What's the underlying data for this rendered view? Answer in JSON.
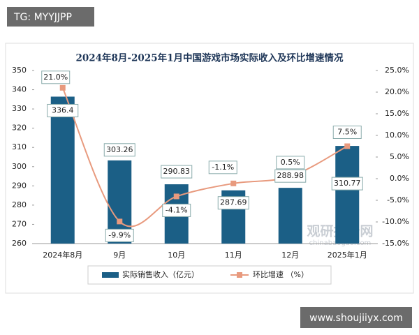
{
  "chart_data": {
    "type": "bar-line",
    "title": "2024年8月-2025年1月中国游戏市场实际收入及环比增速情况",
    "categories": [
      "2024年8月",
      "9月",
      "10月",
      "11月",
      "12月",
      "2025年1月"
    ],
    "series": [
      {
        "name": "实际销售收入（亿元）",
        "type": "bar",
        "color": "#1b5f86",
        "values": [
          336.4,
          303.26,
          290.83,
          287.69,
          288.98,
          310.77
        ]
      },
      {
        "name": "环比增速 （%）",
        "type": "line",
        "axis": "y2",
        "color": "#e89a7e",
        "values": [
          21.0,
          -9.9,
          -4.1,
          -1.1,
          0.5,
          7.5
        ],
        "value_labels": [
          "21.0%",
          "-9.9%",
          "-4.1%",
          "-1.1%",
          "0.5%",
          "7.5%"
        ]
      }
    ],
    "ylim": [
      260,
      350
    ],
    "yticks": [
      260,
      270,
      280,
      290,
      300,
      310,
      320,
      330,
      340,
      350
    ],
    "y2lim": [
      -15,
      25
    ],
    "y2ticks": [
      {
        "value": -15,
        "label": "-15.0%"
      },
      {
        "value": -10,
        "label": "-10.0%"
      },
      {
        "value": -5,
        "label": "-5.0%"
      },
      {
        "value": 0,
        "label": "0.0%"
      },
      {
        "value": 5,
        "label": "5.0%"
      },
      {
        "value": 10,
        "label": "10.0%"
      },
      {
        "value": 15,
        "label": "15.0%"
      },
      {
        "value": 20,
        "label": "20.0%"
      },
      {
        "value": 25,
        "label": "25.0%"
      }
    ],
    "legend": "bottom"
  },
  "watermarks": {
    "top_left": "TG: MYYJJPP",
    "bottom_right": "www.shoujiiyx.com",
    "brand": "观研报告网",
    "brand_url": "chinabaogao.com"
  }
}
